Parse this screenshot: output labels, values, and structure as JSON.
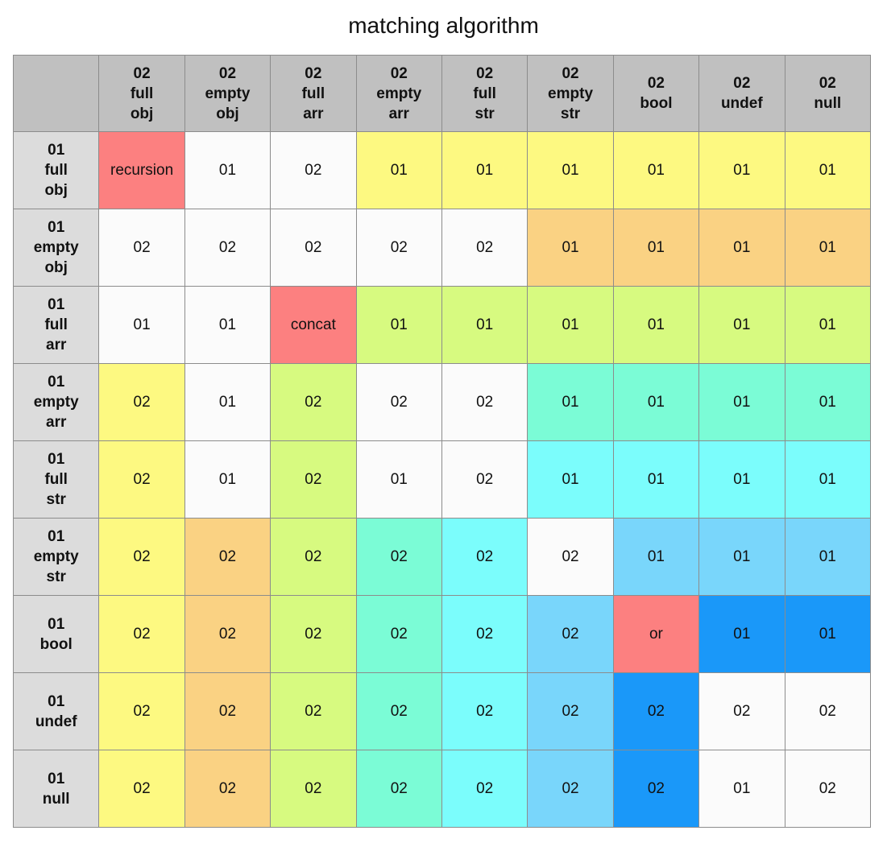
{
  "title": "matching algorithm",
  "colors": {
    "header_bg": "#c0c0c0",
    "row_header_bg": "#dcdcdc",
    "W": "#fbfbfb",
    "R": "#fc8080",
    "Y": "#fdf981",
    "O": "#fad283",
    "L": "#d7fa80",
    "T": "#7bfcd6",
    "C": "#7bfdfc",
    "S": "#79d6fb",
    "B": "#1a98f9"
  },
  "columns": [
    [
      "02",
      "full",
      "obj"
    ],
    [
      "02",
      "empty",
      "obj"
    ],
    [
      "02",
      "full",
      "arr"
    ],
    [
      "02",
      "empty",
      "arr"
    ],
    [
      "02",
      "full",
      "str"
    ],
    [
      "02",
      "empty",
      "str"
    ],
    [
      "02",
      "bool"
    ],
    [
      "02",
      "undef"
    ],
    [
      "02",
      "null"
    ]
  ],
  "rows": [
    {
      "label": [
        "01",
        "full",
        "obj"
      ],
      "cells": [
        [
          "recursion",
          "R"
        ],
        [
          "01",
          "W"
        ],
        [
          "02",
          "W"
        ],
        [
          "01",
          "Y"
        ],
        [
          "01",
          "Y"
        ],
        [
          "01",
          "Y"
        ],
        [
          "01",
          "Y"
        ],
        [
          "01",
          "Y"
        ],
        [
          "01",
          "Y"
        ]
      ]
    },
    {
      "label": [
        "01",
        "empty",
        "obj"
      ],
      "cells": [
        [
          "02",
          "W"
        ],
        [
          "02",
          "W"
        ],
        [
          "02",
          "W"
        ],
        [
          "02",
          "W"
        ],
        [
          "02",
          "W"
        ],
        [
          "01",
          "O"
        ],
        [
          "01",
          "O"
        ],
        [
          "01",
          "O"
        ],
        [
          "01",
          "O"
        ]
      ]
    },
    {
      "label": [
        "01",
        "full",
        "arr"
      ],
      "cells": [
        [
          "01",
          "W"
        ],
        [
          "01",
          "W"
        ],
        [
          "concat",
          "R"
        ],
        [
          "01",
          "L"
        ],
        [
          "01",
          "L"
        ],
        [
          "01",
          "L"
        ],
        [
          "01",
          "L"
        ],
        [
          "01",
          "L"
        ],
        [
          "01",
          "L"
        ]
      ]
    },
    {
      "label": [
        "01",
        "empty",
        "arr"
      ],
      "cells": [
        [
          "02",
          "Y"
        ],
        [
          "01",
          "W"
        ],
        [
          "02",
          "L"
        ],
        [
          "02",
          "W"
        ],
        [
          "02",
          "W"
        ],
        [
          "01",
          "T"
        ],
        [
          "01",
          "T"
        ],
        [
          "01",
          "T"
        ],
        [
          "01",
          "T"
        ]
      ]
    },
    {
      "label": [
        "01",
        "full",
        "str"
      ],
      "cells": [
        [
          "02",
          "Y"
        ],
        [
          "01",
          "W"
        ],
        [
          "02",
          "L"
        ],
        [
          "01",
          "W"
        ],
        [
          "02",
          "W"
        ],
        [
          "01",
          "C"
        ],
        [
          "01",
          "C"
        ],
        [
          "01",
          "C"
        ],
        [
          "01",
          "C"
        ]
      ]
    },
    {
      "label": [
        "01",
        "empty",
        "str"
      ],
      "cells": [
        [
          "02",
          "Y"
        ],
        [
          "02",
          "O"
        ],
        [
          "02",
          "L"
        ],
        [
          "02",
          "T"
        ],
        [
          "02",
          "C"
        ],
        [
          "02",
          "W"
        ],
        [
          "01",
          "S"
        ],
        [
          "01",
          "S"
        ],
        [
          "01",
          "S"
        ]
      ]
    },
    {
      "label": [
        "01",
        "bool"
      ],
      "cells": [
        [
          "02",
          "Y"
        ],
        [
          "02",
          "O"
        ],
        [
          "02",
          "L"
        ],
        [
          "02",
          "T"
        ],
        [
          "02",
          "C"
        ],
        [
          "02",
          "S"
        ],
        [
          "or",
          "R"
        ],
        [
          "01",
          "B"
        ],
        [
          "01",
          "B"
        ]
      ]
    },
    {
      "label": [
        "01",
        "undef"
      ],
      "cells": [
        [
          "02",
          "Y"
        ],
        [
          "02",
          "O"
        ],
        [
          "02",
          "L"
        ],
        [
          "02",
          "T"
        ],
        [
          "02",
          "C"
        ],
        [
          "02",
          "S"
        ],
        [
          "02",
          "B"
        ],
        [
          "02",
          "W"
        ],
        [
          "02",
          "W"
        ]
      ]
    },
    {
      "label": [
        "01",
        "null"
      ],
      "cells": [
        [
          "02",
          "Y"
        ],
        [
          "02",
          "O"
        ],
        [
          "02",
          "L"
        ],
        [
          "02",
          "T"
        ],
        [
          "02",
          "C"
        ],
        [
          "02",
          "S"
        ],
        [
          "02",
          "B"
        ],
        [
          "01",
          "W"
        ],
        [
          "02",
          "W"
        ]
      ]
    }
  ]
}
